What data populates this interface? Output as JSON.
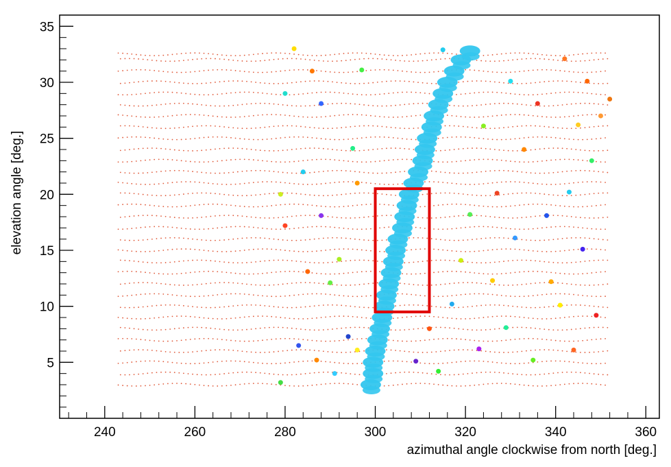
{
  "chart_data": {
    "type": "scatter",
    "title": "",
    "xlabel": "azimuthal angle clockwise from north [deg.]",
    "ylabel": "elevation angle [deg.]",
    "xlim": [
      230,
      363
    ],
    "ylim": [
      0,
      36
    ],
    "xticks": [
      "240",
      "260",
      "280",
      "300",
      "320",
      "340",
      "360"
    ],
    "yticks": [
      "5",
      "10",
      "15",
      "20",
      "25",
      "30",
      "35"
    ],
    "grid": false,
    "legend": "none",
    "background_dots": {
      "color": "#e05a3a",
      "x_range": [
        243,
        351
      ],
      "y_rows": [
        3,
        4,
        5,
        6,
        7,
        8,
        9,
        10,
        11,
        12,
        13,
        14,
        15,
        16,
        17,
        18,
        19,
        20,
        21,
        22,
        23,
        24,
        25,
        26,
        27,
        28,
        29,
        30,
        31,
        32,
        32.5
      ],
      "x_step": 1
    },
    "main_band": {
      "color": "#33c6ee",
      "points": [
        [
          299,
          3
        ],
        [
          299.5,
          4
        ],
        [
          299.5,
          5
        ],
        [
          300,
          6
        ],
        [
          300.5,
          7
        ],
        [
          301,
          8
        ],
        [
          301.5,
          9
        ],
        [
          302,
          10
        ],
        [
          302.5,
          11
        ],
        [
          303,
          12
        ],
        [
          303.5,
          13
        ],
        [
          304,
          14
        ],
        [
          304.5,
          15
        ],
        [
          305,
          16
        ],
        [
          306,
          17
        ],
        [
          306.5,
          18
        ],
        [
          307,
          19
        ],
        [
          307.5,
          20
        ],
        [
          308.5,
          21
        ],
        [
          309.5,
          22
        ],
        [
          310.5,
          23
        ],
        [
          311,
          24
        ],
        [
          311.5,
          25
        ],
        [
          312.5,
          26
        ],
        [
          313,
          27
        ],
        [
          314,
          28
        ],
        [
          315,
          29
        ],
        [
          316,
          30
        ],
        [
          317.5,
          31
        ],
        [
          319,
          32
        ],
        [
          321,
          32.8
        ]
      ]
    },
    "scatter_points": [
      {
        "x": 279,
        "y": 3.2,
        "color": "#44dd44"
      },
      {
        "x": 283,
        "y": 6.5,
        "color": "#3355ee"
      },
      {
        "x": 287,
        "y": 5.2,
        "color": "#ff8800"
      },
      {
        "x": 291,
        "y": 4,
        "color": "#33ccff"
      },
      {
        "x": 294,
        "y": 7.3,
        "color": "#2244cc"
      },
      {
        "x": 296,
        "y": 6.1,
        "color": "#ffee22"
      },
      {
        "x": 279,
        "y": 20,
        "color": "#ccee22"
      },
      {
        "x": 280,
        "y": 17.2,
        "color": "#ff4422"
      },
      {
        "x": 284,
        "y": 22,
        "color": "#22ccee"
      },
      {
        "x": 285,
        "y": 13.1,
        "color": "#ff6600"
      },
      {
        "x": 290,
        "y": 12.1,
        "color": "#66ee44"
      },
      {
        "x": 296,
        "y": 21,
        "color": "#ff9900"
      },
      {
        "x": 288,
        "y": 28.1,
        "color": "#3366ff"
      },
      {
        "x": 286,
        "y": 31,
        "color": "#ff7700"
      },
      {
        "x": 282,
        "y": 33,
        "color": "#ffdd00"
      },
      {
        "x": 295,
        "y": 24.1,
        "color": "#22ee88"
      },
      {
        "x": 280,
        "y": 29,
        "color": "#22ddcc"
      },
      {
        "x": 292,
        "y": 14.2,
        "color": "#aaee22"
      },
      {
        "x": 288,
        "y": 18.1,
        "color": "#8833ee"
      },
      {
        "x": 297,
        "y": 31.1,
        "color": "#44ee44"
      },
      {
        "x": 309,
        "y": 5.1,
        "color": "#6622cc"
      },
      {
        "x": 312,
        "y": 8,
        "color": "#ff5511"
      },
      {
        "x": 314,
        "y": 4.2,
        "color": "#33ee33"
      },
      {
        "x": 317,
        "y": 10.2,
        "color": "#22aaee"
      },
      {
        "x": 319,
        "y": 14.1,
        "color": "#ccee11"
      },
      {
        "x": 321,
        "y": 18.2,
        "color": "#55ee55"
      },
      {
        "x": 323,
        "y": 6.2,
        "color": "#aa22ee"
      },
      {
        "x": 326,
        "y": 12.3,
        "color": "#ffcc00"
      },
      {
        "x": 327,
        "y": 20.1,
        "color": "#ee4422"
      },
      {
        "x": 329,
        "y": 8.1,
        "color": "#22ee99"
      },
      {
        "x": 331,
        "y": 16.1,
        "color": "#3399ff"
      },
      {
        "x": 333,
        "y": 24,
        "color": "#ff8800"
      },
      {
        "x": 335,
        "y": 5.2,
        "color": "#66ee22"
      },
      {
        "x": 336,
        "y": 28.1,
        "color": "#ee3322"
      },
      {
        "x": 338,
        "y": 18.1,
        "color": "#2255ee"
      },
      {
        "x": 339,
        "y": 12.2,
        "color": "#ffaa00"
      },
      {
        "x": 341,
        "y": 10.1,
        "color": "#ffee00"
      },
      {
        "x": 343,
        "y": 20.2,
        "color": "#22ccee"
      },
      {
        "x": 344,
        "y": 6.1,
        "color": "#ff6622"
      },
      {
        "x": 345,
        "y": 26.2,
        "color": "#ffcc22"
      },
      {
        "x": 346,
        "y": 15.1,
        "color": "#4422ee"
      },
      {
        "x": 347,
        "y": 30.1,
        "color": "#ff6600"
      },
      {
        "x": 348,
        "y": 23,
        "color": "#33ee66"
      },
      {
        "x": 349,
        "y": 9.2,
        "color": "#ee2222"
      },
      {
        "x": 350,
        "y": 27,
        "color": "#ff9933"
      },
      {
        "x": 352,
        "y": 28.5,
        "color": "#ee7711"
      },
      {
        "x": 342,
        "y": 32.1,
        "color": "#ff7722"
      },
      {
        "x": 330,
        "y": 30.1,
        "color": "#22ddee"
      },
      {
        "x": 324,
        "y": 26.1,
        "color": "#88ee22"
      },
      {
        "x": 315,
        "y": 32.9,
        "color": "#22ccee"
      }
    ],
    "highlight_box": {
      "x0": 300,
      "x1": 312,
      "y0": 9.5,
      "y1": 20.5,
      "color": "#e00000"
    }
  }
}
